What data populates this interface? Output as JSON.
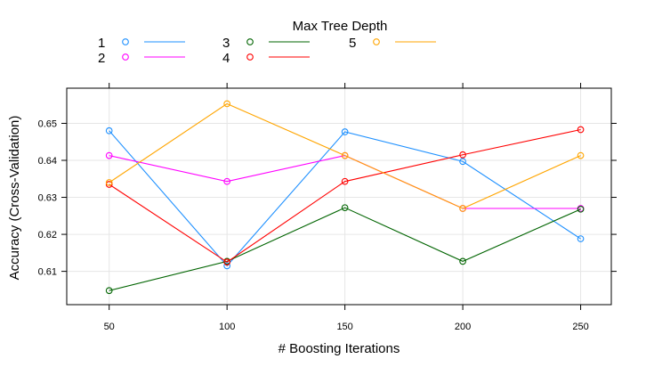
{
  "chart_data": {
    "type": "line",
    "legend_title": "Max Tree Depth",
    "legend_placement": "top",
    "x": [
      50,
      100,
      150,
      200,
      250
    ],
    "series": [
      {
        "name": "1",
        "color": "#1E90FF",
        "values": [
          0.648,
          0.6115,
          0.6477,
          0.6397,
          0.6188
        ]
      },
      {
        "name": "2",
        "color": "#FF00FF",
        "values": [
          0.6413,
          0.6343,
          0.6413,
          0.627,
          0.627
        ]
      },
      {
        "name": "3",
        "color": "#006400",
        "values": [
          0.6048,
          0.6127,
          0.6272,
          0.6127,
          0.6268
        ]
      },
      {
        "name": "4",
        "color": "#FF0000",
        "values": [
          0.6335,
          0.6125,
          0.6343,
          0.6415,
          0.6483
        ]
      },
      {
        "name": "5",
        "color": "#FFA500",
        "values": [
          0.634,
          0.6553,
          0.6413,
          0.627,
          0.6413
        ]
      }
    ],
    "xlabel": "# Boosting Iterations",
    "ylabel": "Accuracy (Cross-Validation)",
    "xlim": [
      32,
      263
    ],
    "ylim": [
      0.601,
      0.6595
    ],
    "xticks": [
      "50",
      "100",
      "150",
      "200",
      "250"
    ],
    "yticks": [
      "0.61",
      "0.62",
      "0.63",
      "0.64",
      "0.65"
    ],
    "grid": true
  }
}
